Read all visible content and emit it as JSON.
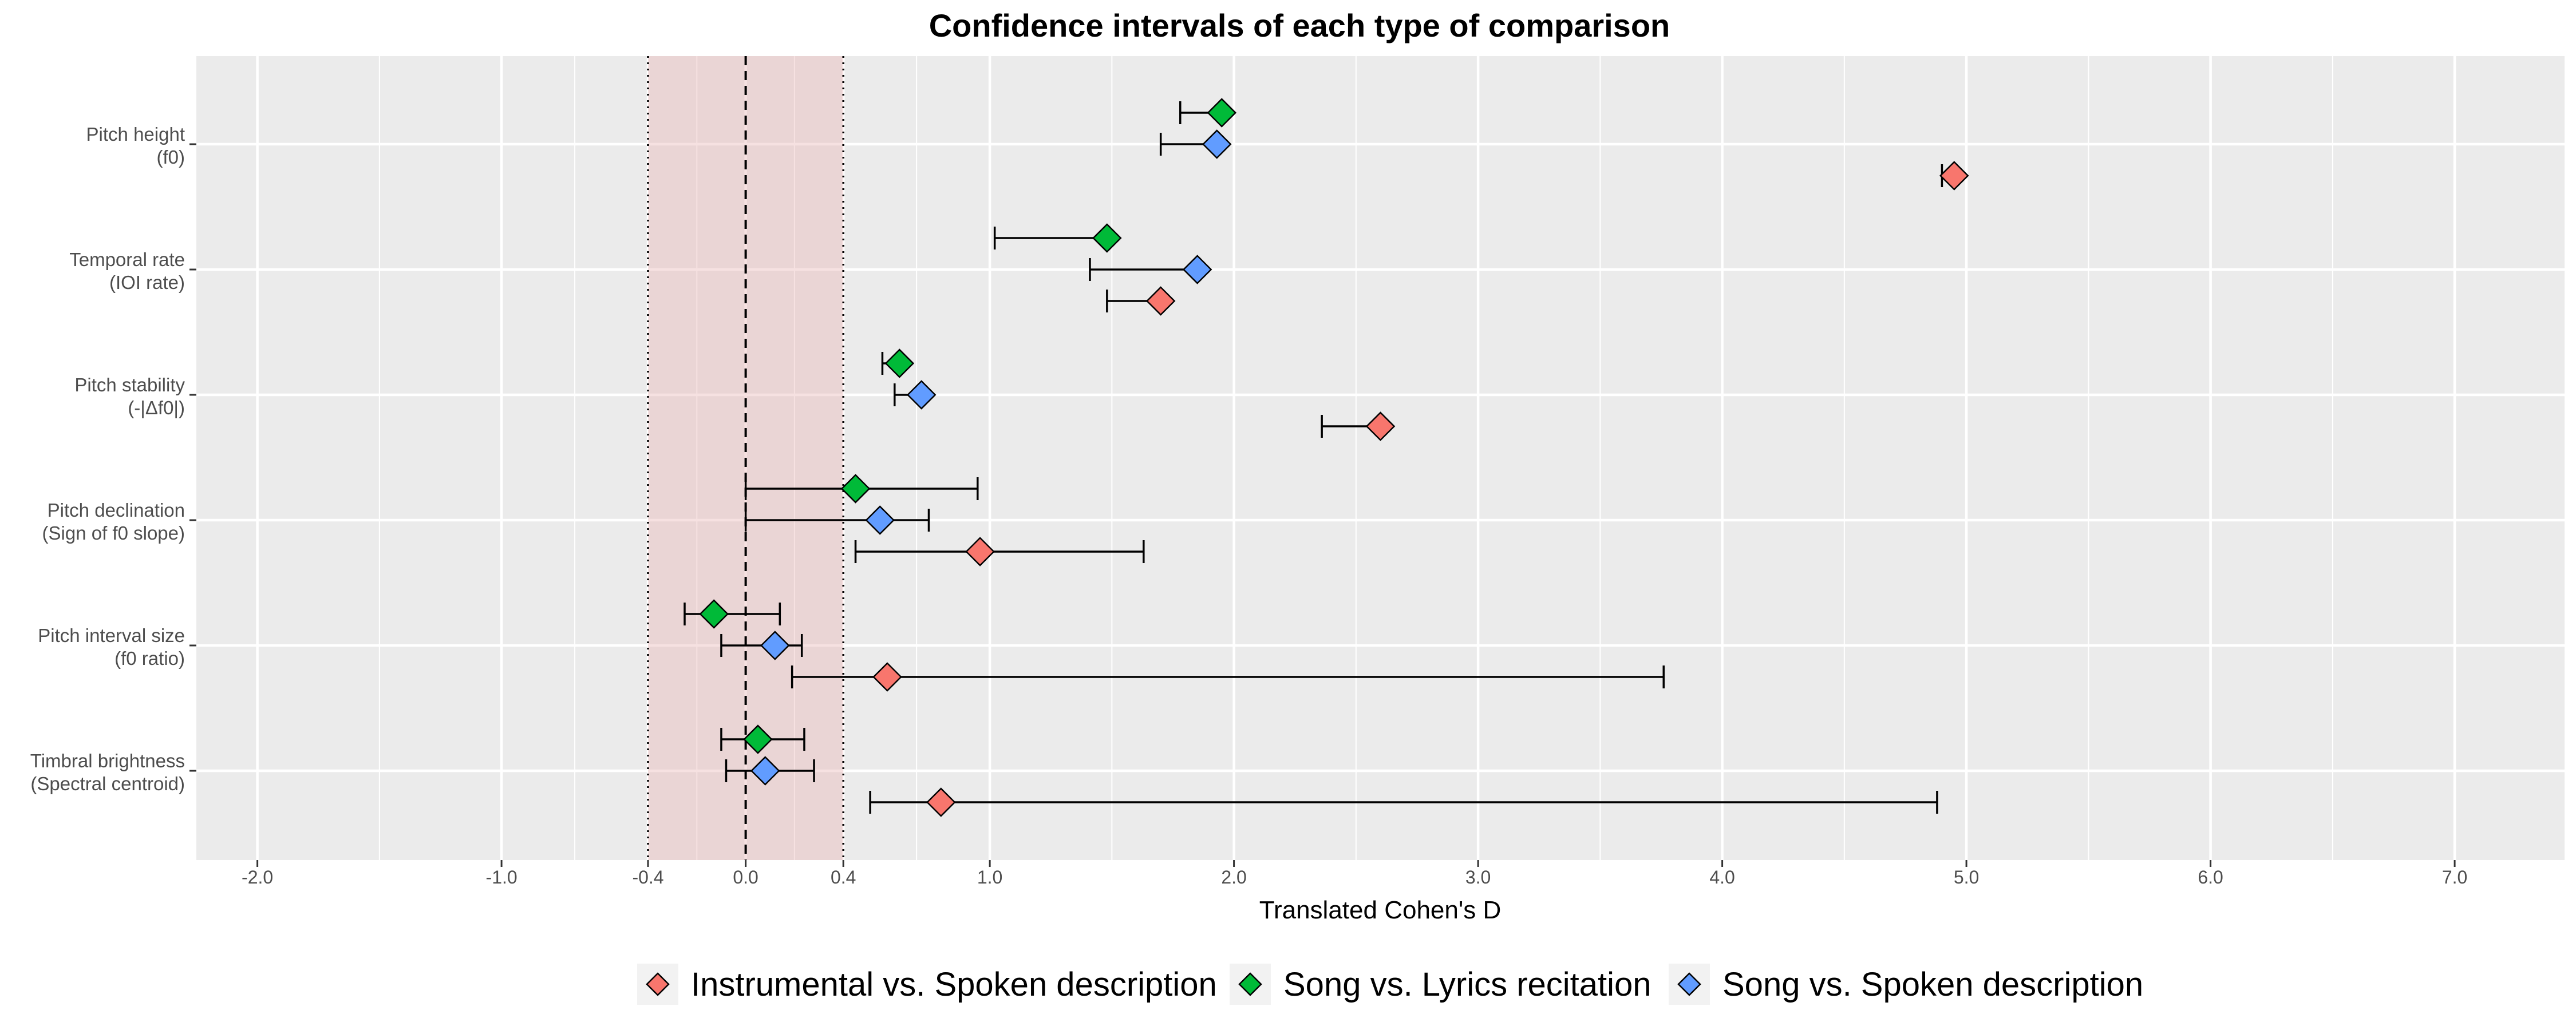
{
  "chart_data": {
    "type": "scatter",
    "title": "Confidence intervals of each type of comparison",
    "xlabel": "Translated Cohen's D",
    "ylabel": "",
    "xlim": [
      -2.25,
      7.45
    ],
    "x_ticks": [
      -2.0,
      -1.0,
      -0.4,
      0.0,
      0.4,
      1.0,
      2.0,
      3.0,
      4.0,
      5.0,
      6.0,
      7.0
    ],
    "x_tick_labels": [
      "-2.0",
      "-1.0",
      "-0.4",
      "0.0",
      "0.4",
      "1.0",
      "2.0",
      "3.0",
      "4.0",
      "5.0",
      "6.0",
      "7.0"
    ],
    "grid": true,
    "reference_band": [
      -0.4,
      0.4
    ],
    "reference_line": 0.0,
    "legend_position": "bottom",
    "categories": [
      {
        "label_lines": [
          "Pitch height",
          "(f0)"
        ]
      },
      {
        "label_lines": [
          "Temporal rate",
          "(IOI rate)"
        ]
      },
      {
        "label_lines": [
          "Pitch stability",
          "(-|Δf0|)"
        ]
      },
      {
        "label_lines": [
          "Pitch declination",
          "(Sign of f0 slope)"
        ]
      },
      {
        "label_lines": [
          "Pitch interval size",
          "(f0 ratio)"
        ]
      },
      {
        "label_lines": [
          "Timbral brightness",
          "(Spectral centroid)"
        ]
      }
    ],
    "series": [
      {
        "name": "Instrumental vs. Spoken description",
        "color": "#F8766D",
        "values": [
          4.95,
          1.7,
          2.6,
          0.96,
          0.58,
          0.8
        ],
        "lower": [
          4.9,
          1.48,
          2.36,
          0.45,
          0.19,
          0.51
        ],
        "upper": [
          4.95,
          1.7,
          2.6,
          1.63,
          3.76,
          4.88
        ]
      },
      {
        "name": "Song vs. Lyrics recitation",
        "color": "#00BA38",
        "values": [
          1.95,
          1.48,
          0.63,
          0.45,
          -0.13,
          0.05
        ],
        "lower": [
          1.78,
          1.02,
          0.56,
          0.0,
          -0.25,
          -0.1
        ],
        "upper": [
          1.95,
          1.48,
          0.63,
          0.95,
          0.14,
          0.24
        ]
      },
      {
        "name": "Song vs. Spoken description",
        "color": "#619CFF",
        "values": [
          1.93,
          1.85,
          0.72,
          0.55,
          0.12,
          0.08
        ],
        "lower": [
          1.7,
          1.41,
          0.61,
          0.0,
          -0.1,
          -0.08
        ],
        "upper": [
          1.93,
          1.85,
          0.72,
          0.75,
          0.23,
          0.28
        ]
      }
    ]
  }
}
